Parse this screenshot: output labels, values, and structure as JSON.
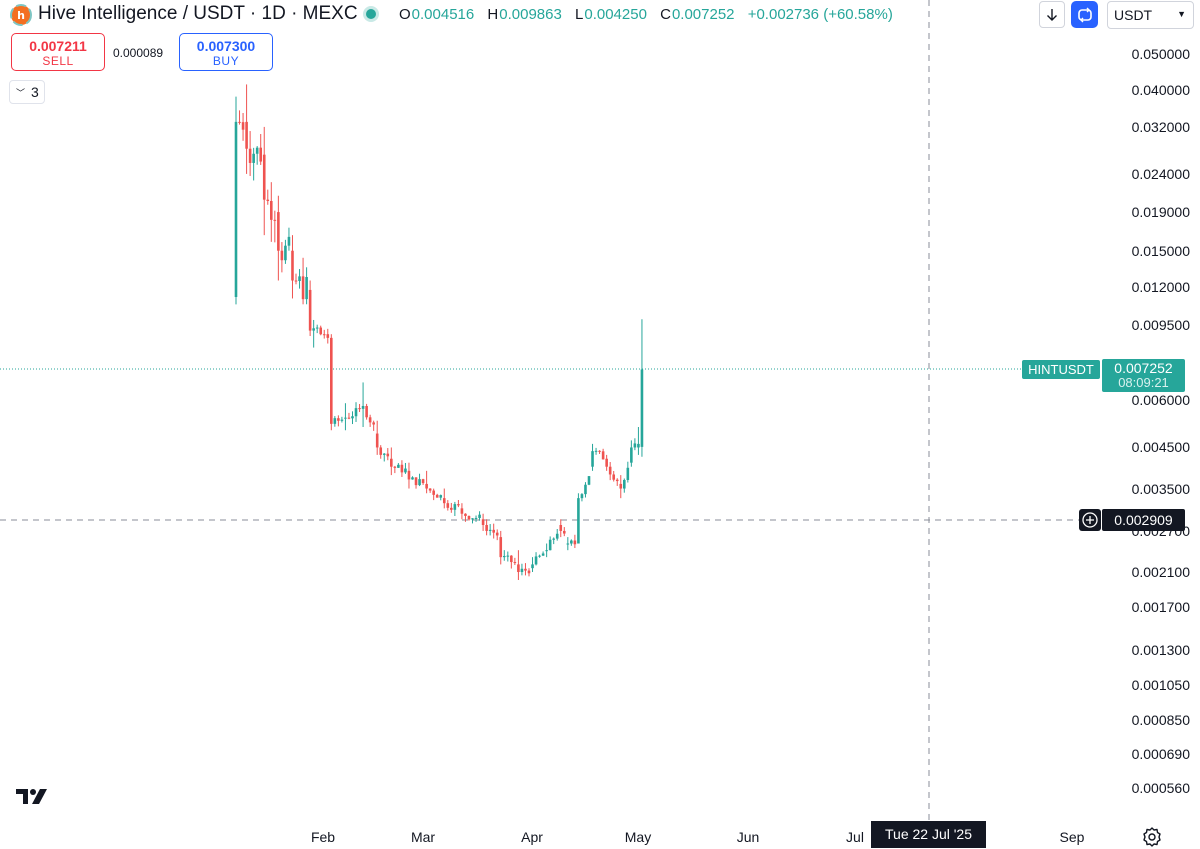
{
  "header": {
    "title": "Hive Intelligence / USDT · 1D · MEXC",
    "ohlc": [
      {
        "key": "O",
        "value": "0.004516"
      },
      {
        "key": "H",
        "value": "0.009863"
      },
      {
        "key": "L",
        "value": "0.004250"
      },
      {
        "key": "C",
        "value": "0.007252"
      }
    ],
    "change": "+0.002736 (+60.58%)",
    "currency": "USDT"
  },
  "trade": {
    "sell_price": "0.007211",
    "sell_label": "SELL",
    "spread": "0.000089",
    "buy_price": "0.007300",
    "buy_label": "BUY"
  },
  "indicators": {
    "count": "3"
  },
  "price_axis": {
    "ticks": [
      "0.050000",
      "0.040000",
      "0.032000",
      "0.024000",
      "0.019000",
      "0.015000",
      "0.012000",
      "0.009500",
      "0.006000",
      "0.004500",
      "0.003500",
      "0.002700",
      "0.002100",
      "0.001700",
      "0.001300",
      "0.001050",
      "0.000850",
      "0.000690",
      "0.000560"
    ],
    "last_price": "0.007252",
    "countdown": "08:09:21",
    "symbol_tag": "HINTUSDT",
    "crosshair_price": "0.002909"
  },
  "time_axis": {
    "ticks": [
      "Feb",
      "Mar",
      "Apr",
      "May",
      "Jun",
      "Jul",
      "Sep"
    ],
    "crosshair_date": "Tue 22 Jul '25"
  },
  "colors": {
    "up": "#26a69a",
    "down": "#ef5350",
    "accent": "#2962ff",
    "dark": "#131722"
  },
  "chart_data": {
    "type": "candlestick",
    "scale": "log",
    "ylim": [
      0.00053,
      0.0525
    ],
    "anchors": [
      {
        "date": "2025-01-20",
        "o": 0.0113,
        "h": 0.0385,
        "l": 0.0108,
        "c": 0.033
      },
      {
        "date": "2025-01-23",
        "o": 0.033,
        "h": 0.0415,
        "l": 0.024,
        "c": 0.028
      },
      {
        "date": "2025-01-28",
        "o": 0.027,
        "h": 0.032,
        "l": 0.0165,
        "c": 0.0205
      },
      {
        "date": "2025-02-01",
        "o": 0.019,
        "h": 0.021,
        "l": 0.0125,
        "c": 0.015
      },
      {
        "date": "2025-02-05",
        "o": 0.015,
        "h": 0.0165,
        "l": 0.0112,
        "c": 0.0125
      },
      {
        "date": "2025-02-10",
        "o": 0.0118,
        "h": 0.0125,
        "l": 0.0089,
        "c": 0.0092
      },
      {
        "date": "2025-02-15",
        "o": 0.009,
        "h": 0.0093,
        "l": 0.0085,
        "c": 0.0088
      },
      {
        "date": "2025-02-16",
        "o": 0.0088,
        "h": 0.009,
        "l": 0.005,
        "c": 0.0052
      },
      {
        "date": "2025-02-20",
        "o": 0.0054,
        "h": 0.0059,
        "l": 0.005,
        "c": 0.0054
      },
      {
        "date": "2025-02-25",
        "o": 0.0057,
        "h": 0.0067,
        "l": 0.0051,
        "c": 0.0058
      },
      {
        "date": "2025-03-01",
        "o": 0.0049,
        "h": 0.0053,
        "l": 0.0043,
        "c": 0.0045
      },
      {
        "date": "2025-03-05",
        "o": 0.0042,
        "h": 0.0045,
        "l": 0.0038,
        "c": 0.004
      },
      {
        "date": "2025-03-10",
        "o": 0.0039,
        "h": 0.0041,
        "l": 0.0035,
        "c": 0.0037
      },
      {
        "date": "2025-03-15",
        "o": 0.0036,
        "h": 0.0039,
        "l": 0.0034,
        "c": 0.0035
      },
      {
        "date": "2025-03-20",
        "o": 0.0033,
        "h": 0.0035,
        "l": 0.0031,
        "c": 0.0032
      },
      {
        "date": "2025-03-25",
        "o": 0.0031,
        "h": 0.0032,
        "l": 0.0029,
        "c": 0.003
      },
      {
        "date": "2025-03-31",
        "o": 0.0029,
        "h": 0.003,
        "l": 0.0027,
        "c": 0.0028
      },
      {
        "date": "2025-04-05",
        "o": 0.0026,
        "h": 0.0027,
        "l": 0.0022,
        "c": 0.0023
      },
      {
        "date": "2025-04-10",
        "o": 0.0022,
        "h": 0.0024,
        "l": 0.002,
        "c": 0.0021
      },
      {
        "date": "2025-04-14",
        "o": 0.00215,
        "h": 0.0023,
        "l": 0.0021,
        "c": 0.0022
      },
      {
        "date": "2025-04-18",
        "o": 0.0024,
        "h": 0.0025,
        "l": 0.0023,
        "c": 0.0024
      },
      {
        "date": "2025-04-22",
        "o": 0.0028,
        "h": 0.0029,
        "l": 0.0026,
        "c": 0.0027
      },
      {
        "date": "2025-04-24",
        "o": 0.0025,
        "h": 0.0026,
        "l": 0.0024,
        "c": 0.0025
      },
      {
        "date": "2025-04-27",
        "o": 0.0025,
        "h": 0.0034,
        "l": 0.0025,
        "c": 0.0033
      },
      {
        "date": "2025-05-01",
        "o": 0.004,
        "h": 0.0046,
        "l": 0.0039,
        "c": 0.0044
      },
      {
        "date": "2025-05-05",
        "o": 0.0042,
        "h": 0.0043,
        "l": 0.0039,
        "c": 0.004
      },
      {
        "date": "2025-05-09",
        "o": 0.0036,
        "h": 0.0038,
        "l": 0.0033,
        "c": 0.0035
      },
      {
        "date": "2025-05-12",
        "o": 0.0041,
        "h": 0.0047,
        "l": 0.004,
        "c": 0.0045
      },
      {
        "date": "2025-05-14",
        "o": 0.0045,
        "h": 0.0051,
        "l": 0.0043,
        "c": 0.0046
      },
      {
        "date": "2025-05-15",
        "o": 0.004516,
        "h": 0.009863,
        "l": 0.00425,
        "c": 0.007252
      }
    ]
  }
}
